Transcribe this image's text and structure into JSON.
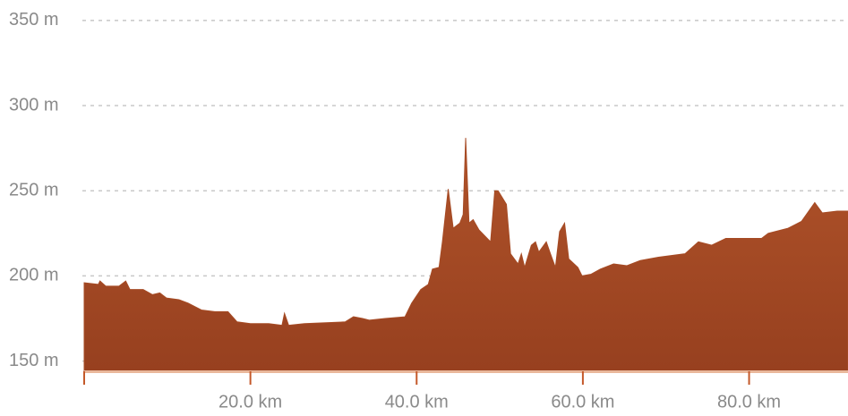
{
  "chart_data": {
    "type": "area",
    "x": [
      0,
      1.7,
      1.9,
      2.6,
      4.2,
      5.0,
      5.5,
      7.1,
      8.2,
      9.1,
      9.9,
      11.4,
      12.5,
      14.1,
      15.7,
      17.3,
      18.4,
      20,
      22.2,
      23.8,
      24.1,
      24.6,
      26.5,
      31.4,
      32.4,
      33.5,
      34.3,
      36.2,
      38.6,
      39.4,
      40.5,
      41.4,
      41.9,
      42.7,
      43.1,
      43.8,
      44.4,
      45.2,
      45.6,
      45.9,
      46.3,
      46.8,
      47.5,
      48.9,
      49.4,
      49.8,
      50.8,
      51.3,
      52.2,
      52.6,
      53.0,
      53.8,
      54.3,
      54.7,
      55.6,
      56.1,
      56.7,
      57.2,
      57.8,
      58.3,
      59.4,
      59.9,
      61.0,
      62.1,
      63.7,
      65.3,
      66.9,
      69.1,
      72.3,
      73.9,
      75.5,
      77.2,
      81.5,
      82.3,
      84.7,
      86.3,
      87.9,
      88.8,
      90.6,
      91.9
    ],
    "values": [
      196,
      195,
      197,
      194,
      194,
      197,
      192,
      192,
      189,
      190,
      187,
      186,
      184,
      180,
      179,
      179,
      173,
      172,
      172,
      171,
      178,
      171,
      172,
      173,
      176,
      175,
      174,
      175,
      176,
      184,
      192,
      195,
      204,
      205,
      220,
      251,
      228,
      231,
      236,
      281,
      231,
      233,
      227,
      220,
      250,
      250,
      242,
      213,
      207,
      213,
      205,
      218,
      220,
      214,
      220,
      213,
      205,
      226,
      231,
      210,
      205,
      200,
      201,
      204,
      207,
      206,
      209,
      211,
      213,
      220,
      218,
      222,
      222,
      225,
      228,
      232,
      243,
      237,
      238,
      238
    ],
    "color": "#a64b25",
    "xlim": [
      0,
      91.9
    ],
    "xticks": [
      {
        "value": 20,
        "label": "20.0 km"
      },
      {
        "value": 40,
        "label": "40.0 km"
      },
      {
        "value": 60,
        "label": "60.0 km"
      },
      {
        "value": 80,
        "label": "80.0 km"
      }
    ],
    "ylim": [
      144,
      362
    ],
    "yticks": [
      {
        "value": 150,
        "label": "150 m"
      },
      {
        "value": 200,
        "label": "200 m"
      },
      {
        "value": 250,
        "label": "250 m"
      },
      {
        "value": 300,
        "label": "300 m"
      },
      {
        "value": 350,
        "label": "350 m"
      }
    ],
    "grid": true
  }
}
